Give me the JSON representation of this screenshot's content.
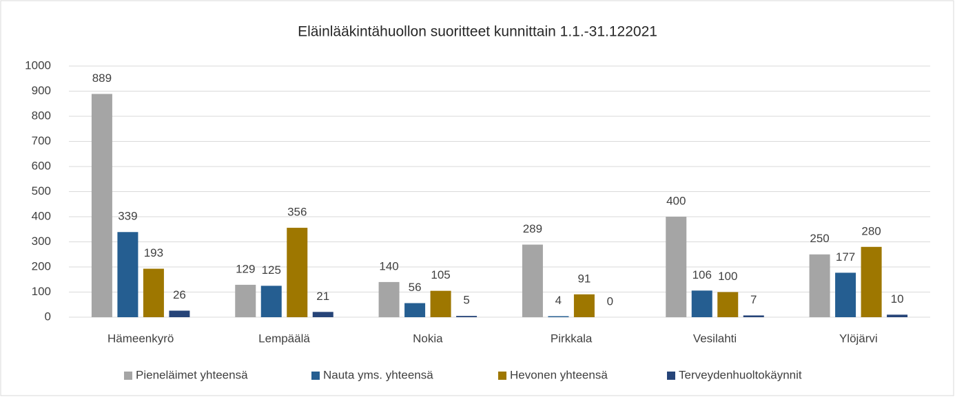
{
  "chart_data": {
    "type": "bar",
    "title": "Eläinlääkintähuollon suoritteet kunnittain 1.1.-31.122021",
    "categories": [
      "Hämeenkyrö",
      "Lempäälä",
      "Nokia",
      "Pirkkala",
      "Vesilahti",
      "Ylöjärvi"
    ],
    "series": [
      {
        "name": "Pieneläimet yhteensä",
        "color": "#a5a5a5",
        "values": [
          889,
          129,
          140,
          289,
          400,
          250
        ]
      },
      {
        "name": "Nauta yms. yhteensä",
        "color": "#255e91",
        "values": [
          339,
          125,
          56,
          4,
          106,
          177
        ]
      },
      {
        "name": "Hevonen yhteensä",
        "color": "#9e7700",
        "values": [
          193,
          356,
          105,
          91,
          100,
          280
        ]
      },
      {
        "name": "Terveydenhuoltokäynnit",
        "color": "#264478",
        "values": [
          26,
          21,
          5,
          0,
          7,
          10
        ]
      }
    ],
    "ylim": [
      0,
      1000
    ],
    "yticks": [
      0,
      100,
      200,
      300,
      400,
      500,
      600,
      700,
      800,
      900,
      1000
    ],
    "grid": true,
    "legend": "bottom"
  }
}
